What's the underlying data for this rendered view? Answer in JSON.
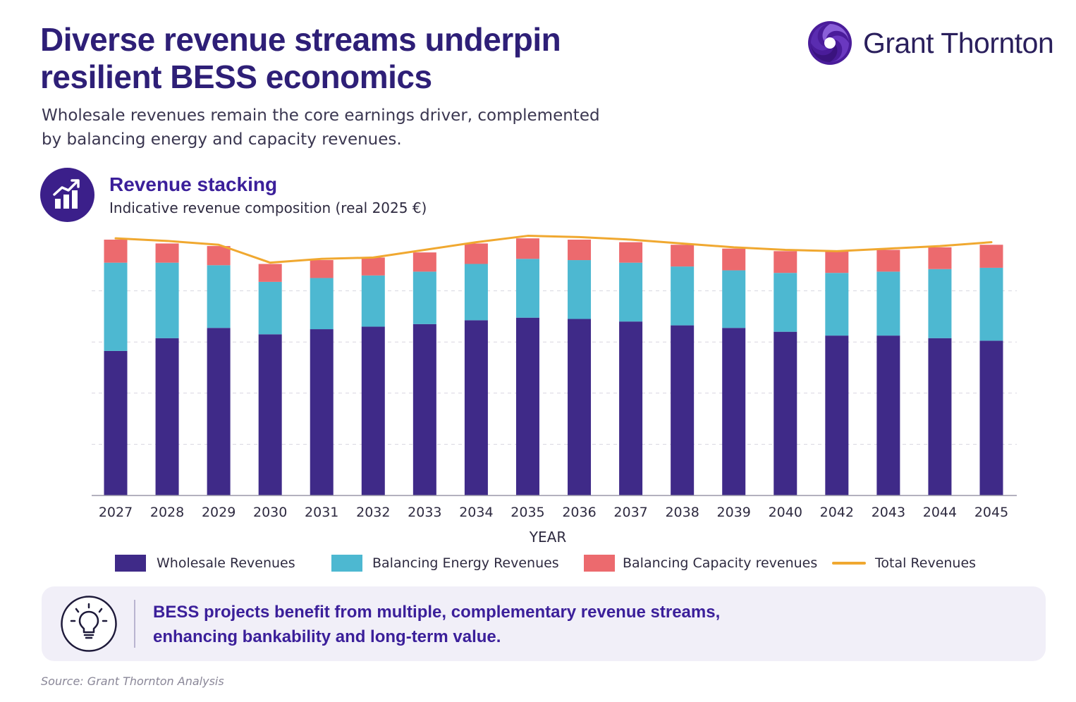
{
  "header": {
    "title_line1": "Diverse revenue streams underpin",
    "title_line2": "resilient BESS economics",
    "subtitle_line1": "Wholesale revenues remain the core earnings driver, complemented",
    "subtitle_line2": "by balancing energy and capacity revenues.",
    "brand": "Grant Thornton",
    "brand_icon": "grant-thornton-swirl-icon"
  },
  "section": {
    "title": "Revenue stacking",
    "subtitle": "Indicative revenue composition (real 2025 €)",
    "icon": "growth-bar-chart-icon"
  },
  "colors": {
    "wholesale": "#3f2a88",
    "balancing_energy": "#4db8d1",
    "balancing_capacity": "#ec6a6e",
    "total": "#f0a830"
  },
  "chart_data": {
    "type": "bar",
    "stacked": true,
    "xlabel": "YEAR",
    "ylabel": "",
    "ylim": [
      0,
      100
    ],
    "grid": true,
    "legend_position": "bottom",
    "categories": [
      "2027",
      "2028",
      "2029",
      "2030",
      "2031",
      "2032",
      "2033",
      "2034",
      "2035",
      "2036",
      "2037",
      "2038",
      "2039",
      "2040",
      "2042",
      "2043",
      "2044",
      "2045"
    ],
    "series": [
      {
        "name": "Wholesale Revenues",
        "color": "#3f2a88",
        "values": [
          56.5,
          61.5,
          65.5,
          63.0,
          65.0,
          66.0,
          67.0,
          68.5,
          69.5,
          69.0,
          68.0,
          66.5,
          65.5,
          64.0,
          62.5,
          62.5,
          61.5,
          60.5
        ]
      },
      {
        "name": "Balancing Energy Revenues",
        "color": "#4db8d1",
        "values": [
          34.5,
          29.5,
          24.5,
          20.5,
          20.0,
          20.0,
          20.5,
          22.0,
          23.0,
          23.0,
          23.0,
          23.0,
          22.5,
          23.0,
          24.5,
          25.0,
          27.0,
          28.5
        ]
      },
      {
        "name": "Balancing Capacity revenues",
        "color": "#ec6a6e",
        "values": [
          9.0,
          7.5,
          7.5,
          7.0,
          7.0,
          7.0,
          7.5,
          8.0,
          8.0,
          8.0,
          8.0,
          8.5,
          8.5,
          8.5,
          8.5,
          8.5,
          8.5,
          9.0
        ]
      }
    ],
    "line_series": {
      "name": "Total Revenues",
      "color": "#f0a830",
      "values": [
        100.5,
        99.5,
        98.0,
        91.0,
        92.5,
        93.0,
        96.0,
        99.0,
        101.5,
        101.0,
        100.0,
        98.5,
        97.0,
        96.0,
        95.5,
        96.5,
        97.5,
        99.0
      ]
    }
  },
  "callout": {
    "icon": "lightbulb-icon",
    "line1": "BESS projects benefit from multiple, complementary revenue streams,",
    "line2": "enhancing bankability and long-term value."
  },
  "footer": {
    "source": "Source: Grant Thornton Analysis"
  }
}
